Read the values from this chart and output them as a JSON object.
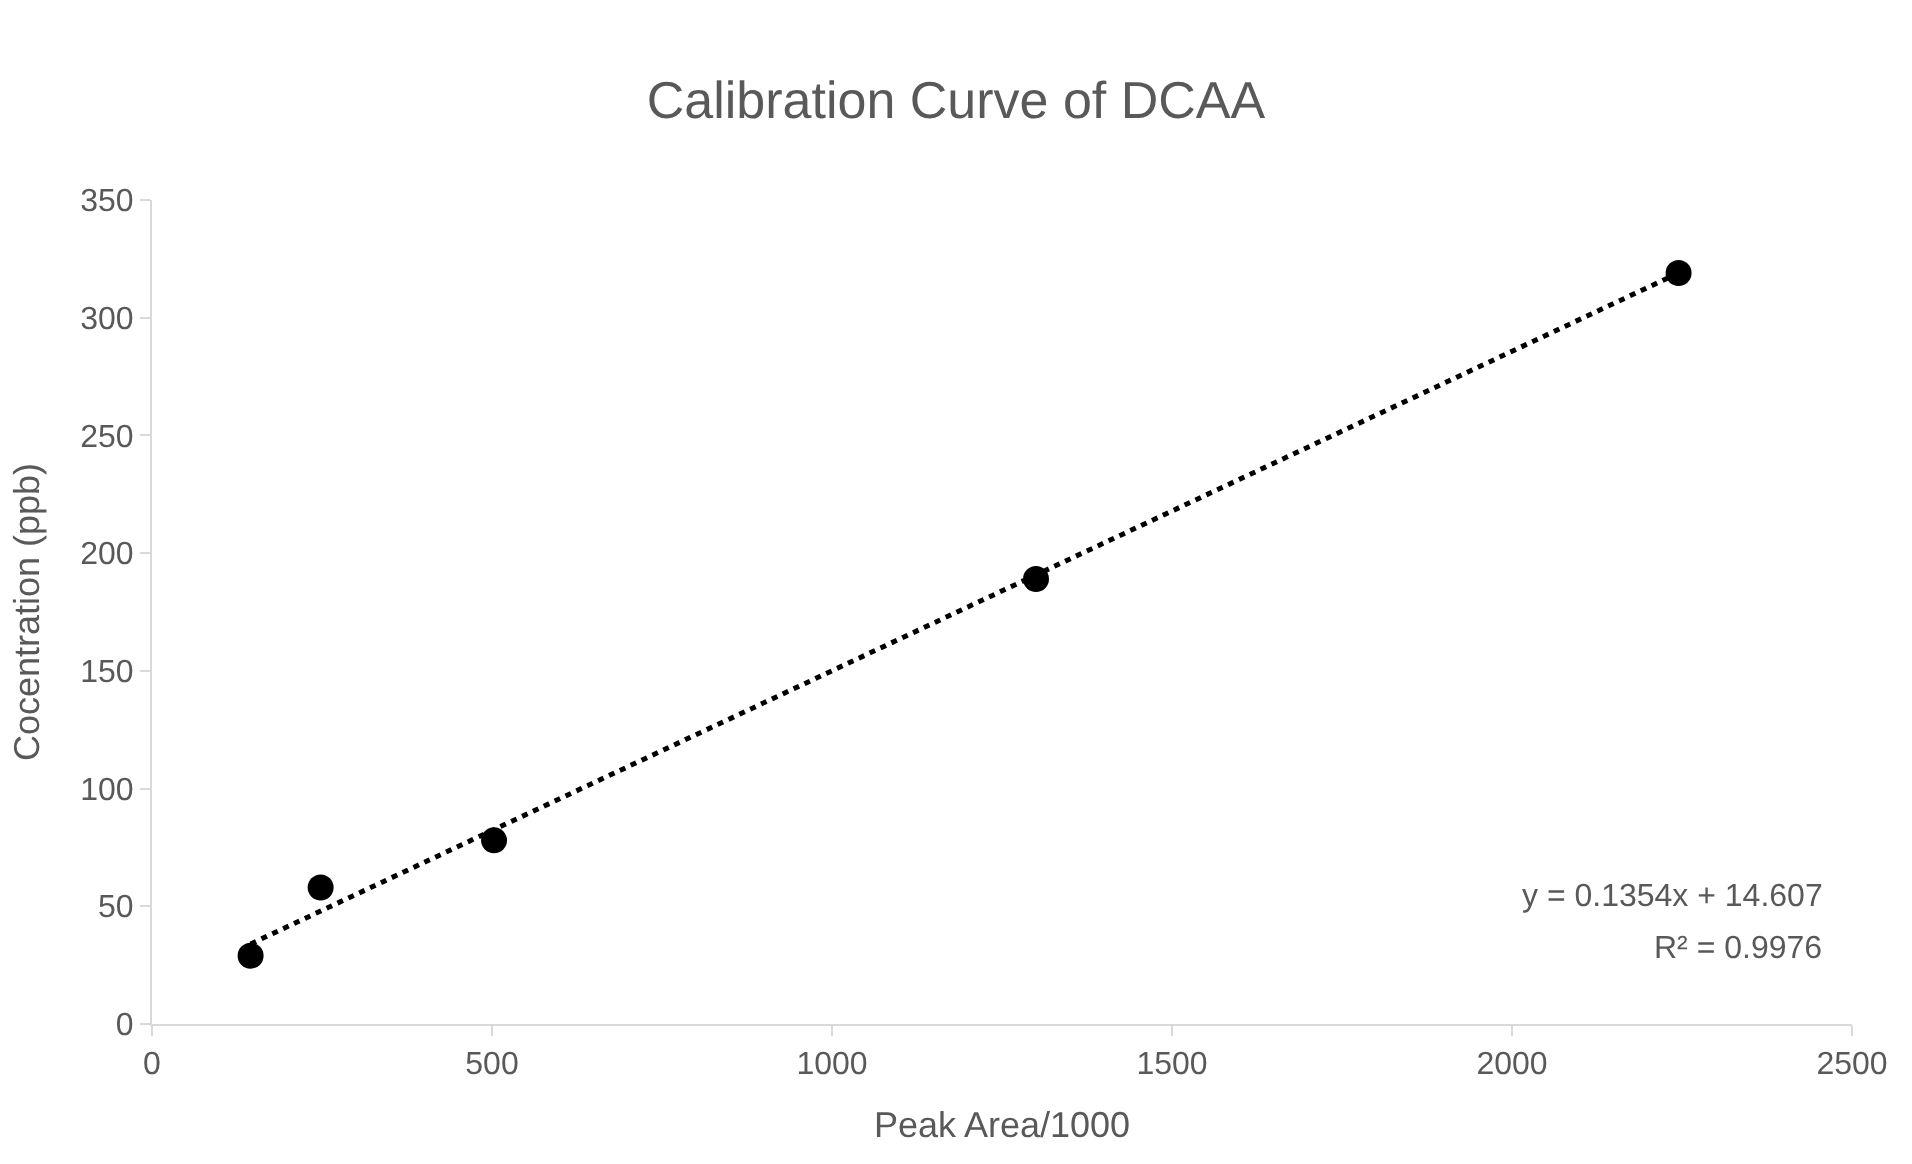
{
  "chart_data": {
    "type": "scatter",
    "title": "Calibration Curve of DCAA",
    "xlabel": "Peak Area/1000",
    "ylabel": "Cocentration (ppb)",
    "x": [
      145,
      248,
      503,
      1300,
      2245
    ],
    "series": [
      {
        "color": "#000000",
        "values": [
          29,
          58,
          78,
          189,
          319
        ],
        "marker": "circle"
      },
      {
        "type": "line",
        "color": "#000000",
        "x": [
          145,
          2245
        ],
        "values": [
          34,
          319
        ],
        "line_style": "dotted",
        "marker": "none"
      }
    ],
    "annotations": [
      "y = 0.1354x + 14.607",
      "R² = 0.9976"
    ],
    "xlim": [
      0,
      2500
    ],
    "xticks": [
      0,
      500,
      1000,
      1500,
      2000,
      2500
    ],
    "ylim": [
      0,
      350
    ],
    "yticks": [
      0,
      50,
      100,
      150,
      200,
      250,
      300,
      350
    ]
  }
}
